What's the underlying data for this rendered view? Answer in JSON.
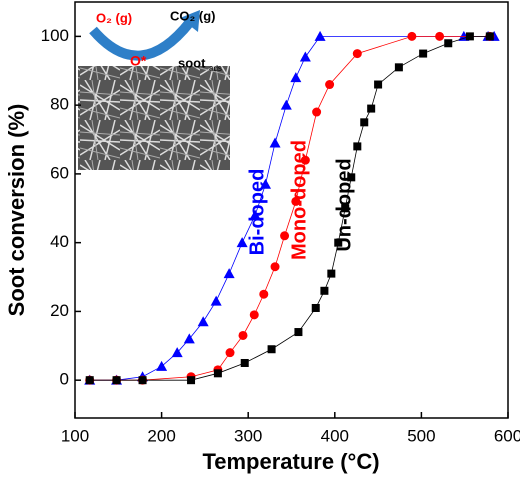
{
  "chart_data": {
    "type": "line",
    "x_label": "Temperature (°C)",
    "y_label": "Soot conversion (%)",
    "xlim": [
      100,
      600
    ],
    "ylim": [
      -11,
      110
    ],
    "xticks": [
      100,
      200,
      300,
      400,
      500,
      600
    ],
    "yticks": [
      0,
      20,
      40,
      60,
      80,
      100
    ],
    "series": [
      {
        "name": "Bi-doped",
        "color": "#0000ff",
        "marker": "triangle",
        "x": [
          117,
          148,
          178,
          200,
          218,
          232,
          248,
          263,
          278,
          293,
          308,
          320,
          331,
          344,
          355,
          366,
          383,
          549,
          577,
          584
        ],
        "values": [
          0,
          0,
          1,
          4,
          8,
          12,
          17,
          23,
          31,
          40,
          48,
          57,
          69,
          80,
          88,
          94,
          100,
          100,
          100,
          100
        ]
      },
      {
        "name": "Mono-doped",
        "color": "#ff0000",
        "marker": "circle",
        "x": [
          117,
          148,
          178,
          234,
          265,
          279,
          294,
          307,
          318,
          331,
          342,
          355,
          366,
          379,
          394,
          426,
          489,
          521,
          579
        ],
        "values": [
          0,
          0,
          0,
          1,
          3,
          8,
          13,
          19,
          25,
          33,
          42,
          52,
          64,
          78,
          86,
          95,
          100,
          100,
          100
        ]
      },
      {
        "name": "Un-doped",
        "color": "#000000",
        "marker": "square",
        "x": [
          117,
          148,
          178,
          234,
          265,
          296,
          327,
          358,
          378,
          388,
          396,
          404,
          412,
          419,
          426,
          434,
          442,
          450,
          474,
          502,
          531,
          556,
          579
        ],
        "values": [
          0,
          0,
          0,
          0,
          2,
          5,
          9,
          14,
          21,
          26,
          31,
          40,
          50,
          59,
          68,
          75,
          79,
          86,
          91,
          95,
          98,
          100,
          100
        ]
      }
    ],
    "inset": {
      "labels": [
        "O₂ (g)",
        "CO₂ (g)",
        "O*",
        "soot",
        "ads"
      ]
    }
  }
}
